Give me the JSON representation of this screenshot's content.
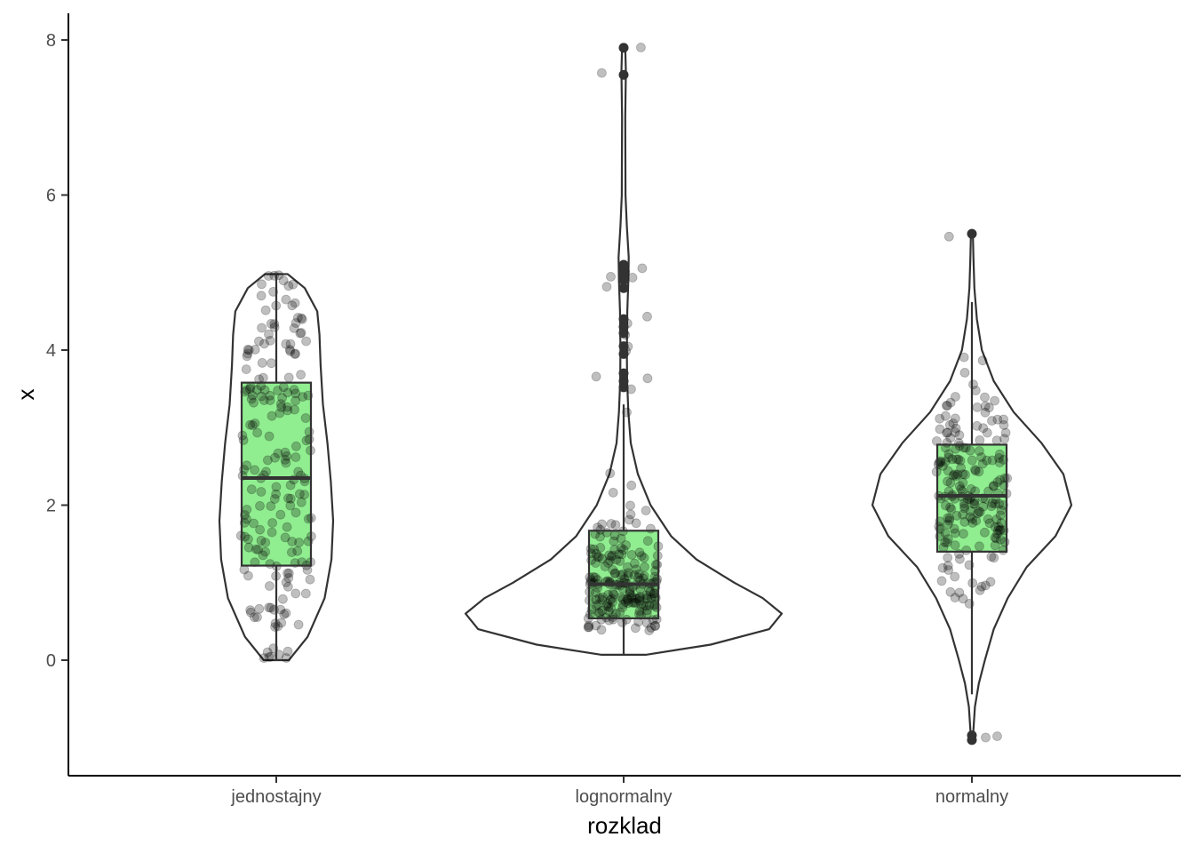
{
  "chart_data": {
    "type": "violin",
    "title": "",
    "xlabel": "rozklad",
    "ylabel": "x",
    "ylim": [
      -1.5,
      8.3
    ],
    "y_ticks": [
      0,
      2,
      4,
      6,
      8
    ],
    "y_tick_labels": [
      "0",
      "2",
      "4",
      "6",
      "8"
    ],
    "grid": false,
    "legend": "none",
    "colors": {
      "box_fill": "#90ee90",
      "outline": "#333333",
      "points": "#000000"
    },
    "categories": [
      "jednostajny",
      "lognormalny",
      "normalny"
    ],
    "groups": [
      {
        "name": "jednostajny",
        "min": 0.0,
        "q1": 1.22,
        "median": 2.35,
        "q3": 3.58,
        "max": 4.98,
        "whisker_low": 0.0,
        "whisker_high": 4.98,
        "outliers": [],
        "density": [
          [
            0.0,
            0.22
          ],
          [
            0.3,
            0.55
          ],
          [
            0.8,
            0.85
          ],
          [
            1.3,
            0.97
          ],
          [
            1.8,
            1.0
          ],
          [
            2.3,
            0.96
          ],
          [
            2.8,
            0.9
          ],
          [
            3.3,
            0.82
          ],
          [
            3.8,
            0.78
          ],
          [
            4.2,
            0.76
          ],
          [
            4.5,
            0.72
          ],
          [
            4.8,
            0.5
          ],
          [
            4.98,
            0.2
          ]
        ]
      },
      {
        "name": "lognormalny",
        "min": 0.07,
        "q1": 0.54,
        "median": 0.98,
        "q3": 1.67,
        "max": 7.9,
        "whisker_low": 0.07,
        "whisker_high": 3.3,
        "outliers": [
          3.52,
          3.6,
          3.7,
          3.95,
          4.05,
          4.22,
          4.3,
          4.4,
          4.8,
          4.9,
          4.95,
          5.0,
          5.05,
          5.1,
          7.55,
          7.9
        ],
        "density": [
          [
            0.07,
            0.14
          ],
          [
            0.2,
            0.55
          ],
          [
            0.4,
            0.92
          ],
          [
            0.6,
            1.0
          ],
          [
            0.8,
            0.88
          ],
          [
            1.0,
            0.7
          ],
          [
            1.3,
            0.46
          ],
          [
            1.6,
            0.3
          ],
          [
            2.0,
            0.17
          ],
          [
            2.4,
            0.09
          ],
          [
            2.8,
            0.045
          ],
          [
            3.2,
            0.03
          ],
          [
            3.6,
            0.022
          ],
          [
            4.0,
            0.02
          ],
          [
            4.5,
            0.023
          ],
          [
            4.9,
            0.03
          ],
          [
            5.2,
            0.032
          ],
          [
            5.6,
            0.02
          ],
          [
            6.0,
            0.012
          ],
          [
            7.0,
            0.01
          ],
          [
            7.6,
            0.014
          ],
          [
            7.9,
            0.01
          ]
        ]
      },
      {
        "name": "normalny",
        "min": -1.03,
        "q1": 1.4,
        "median": 2.12,
        "q3": 2.78,
        "max": 5.5,
        "whisker_low": -0.44,
        "whisker_high": 4.62,
        "outliers": [
          -1.03,
          -0.97,
          5.5
        ],
        "density": [
          [
            -1.03,
            0.01
          ],
          [
            -0.9,
            0.015
          ],
          [
            -0.6,
            0.03
          ],
          [
            -0.3,
            0.07
          ],
          [
            0.0,
            0.13
          ],
          [
            0.4,
            0.22
          ],
          [
            0.8,
            0.36
          ],
          [
            1.2,
            0.55
          ],
          [
            1.6,
            0.84
          ],
          [
            2.0,
            1.0
          ],
          [
            2.4,
            0.92
          ],
          [
            2.8,
            0.7
          ],
          [
            3.2,
            0.42
          ],
          [
            3.6,
            0.22
          ],
          [
            4.0,
            0.1
          ],
          [
            4.4,
            0.05
          ],
          [
            4.8,
            0.025
          ],
          [
            5.2,
            0.015
          ],
          [
            5.5,
            0.01
          ]
        ]
      }
    ]
  }
}
